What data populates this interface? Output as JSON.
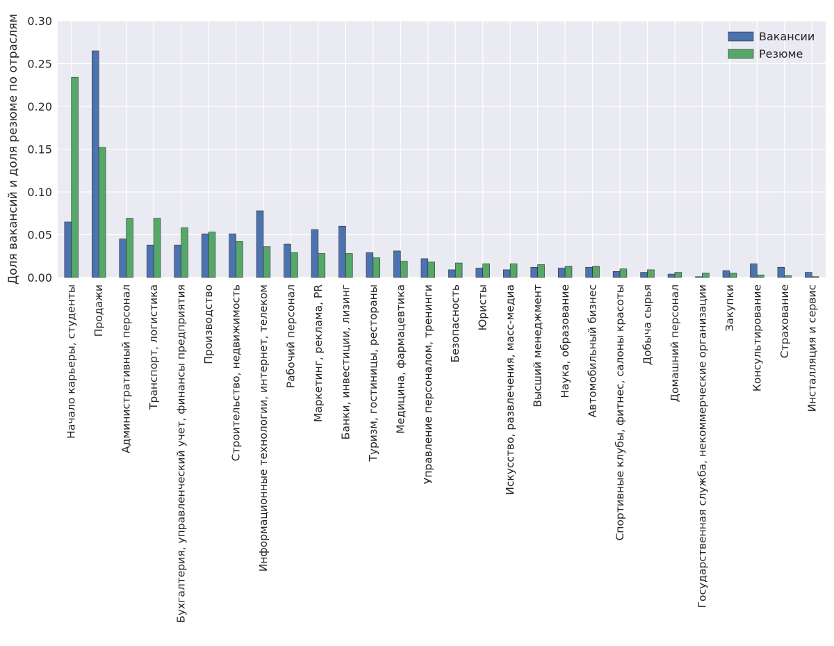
{
  "chart_data": {
    "type": "bar",
    "title": "",
    "xlabel": "",
    "ylabel": "Доля вакансий и доля резюме по отраслям",
    "ylim": [
      0,
      0.3
    ],
    "yticks": [
      "0.00",
      "0.05",
      "0.10",
      "0.15",
      "0.20",
      "0.25",
      "0.30"
    ],
    "grid": true,
    "legend_position": "top-right",
    "categories": [
      "Начало карьеры, студенты",
      "Продажи",
      "Административный персонал",
      "Транспорт, логистика",
      "Бухгалтерия, управленческий учет, финансы предприятия",
      "Производство",
      "Строительство, недвижимость",
      "Информационные технологии, интернет, телеком",
      "Рабочий персонал",
      "Маркетинг, реклама, PR",
      "Банки, инвестиции, лизинг",
      "Туризм, гостиницы, рестораны",
      "Медицина, фармацевтика",
      "Управление персоналом, тренинги",
      "Безопасность",
      "Юристы",
      "Искусство, развлечения, масс-медиа",
      "Высший менеджмент",
      "Наука, образование",
      "Автомобильный бизнес",
      "Спортивные клубы, фитнес, салоны красоты",
      "Добыча сырья",
      "Домашний персонал",
      "Государственная служба, некоммерческие организации",
      "Закупки",
      "Консультирование",
      "Страхование",
      "Инсталляция и сервис"
    ],
    "series": [
      {
        "name": "Вакансии",
        "color": "#4c72b0",
        "values": [
          0.065,
          0.265,
          0.045,
          0.038,
          0.038,
          0.051,
          0.051,
          0.078,
          0.039,
          0.056,
          0.06,
          0.029,
          0.031,
          0.022,
          0.009,
          0.011,
          0.009,
          0.012,
          0.011,
          0.012,
          0.007,
          0.006,
          0.004,
          0.001,
          0.008,
          0.016,
          0.012,
          0.006
        ]
      },
      {
        "name": "Резюме",
        "color": "#55a868",
        "values": [
          0.234,
          0.152,
          0.069,
          0.069,
          0.058,
          0.053,
          0.042,
          0.036,
          0.029,
          0.028,
          0.028,
          0.023,
          0.019,
          0.018,
          0.017,
          0.016,
          0.016,
          0.015,
          0.013,
          0.013,
          0.01,
          0.009,
          0.006,
          0.005,
          0.005,
          0.003,
          0.002,
          0.001
        ]
      }
    ]
  },
  "theme": {
    "plot_background": "#eaeaf2",
    "grid_color": "#ffffff",
    "text_color": "#262626"
  }
}
